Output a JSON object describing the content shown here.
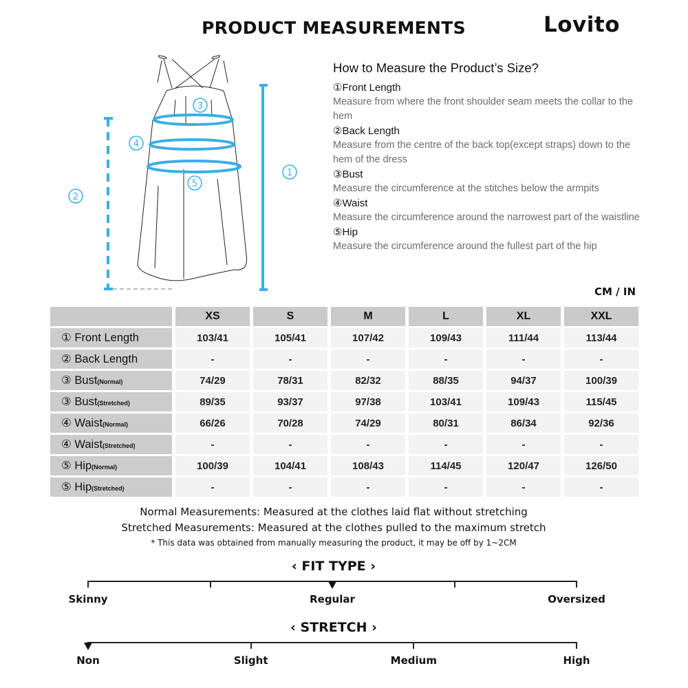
{
  "title": "PRODUCT MEASUREMENTS",
  "brand": "Lovito",
  "accent_color": "#3aaee6",
  "how_to": {
    "heading": "How to Measure the Product’s Size?",
    "items": [
      {
        "label": "①Front Length",
        "desc": "Measure from where the front shoulder seam meets the collar to the hem"
      },
      {
        "label": "②Back Length",
        "desc": "Measure from the centre of the back top(except straps) down to the hem of the dress"
      },
      {
        "label": "③Bust",
        "desc": "Measure the circumference at the stitches below the armpits"
      },
      {
        "label": "④Waist",
        "desc": "Measure the circumference around the narrowest part of the waistline"
      },
      {
        "label": "⑤Hip",
        "desc": "Measure the circumference around the fullest part of the hip"
      }
    ]
  },
  "diagram_labels": [
    "①",
    "②",
    "③",
    "④",
    "⑤"
  ],
  "unit": "CM / IN",
  "table": {
    "sizes": [
      "XS",
      "S",
      "M",
      "L",
      "XL",
      "XXL"
    ],
    "rows": [
      {
        "num": "①",
        "name": "Front Length",
        "sub": "",
        "values": [
          "103/41",
          "105/41",
          "107/42",
          "109/43",
          "111/44",
          "113/44"
        ]
      },
      {
        "num": "②",
        "name": "Back Length",
        "sub": "",
        "values": [
          "-",
          "-",
          "-",
          "-",
          "-",
          "-"
        ]
      },
      {
        "num": "③",
        "name": "Bust",
        "sub": "(Normal)",
        "values": [
          "74/29",
          "78/31",
          "82/32",
          "88/35",
          "94/37",
          "100/39"
        ]
      },
      {
        "num": "③",
        "name": "Bust",
        "sub": "(Stretched)",
        "values": [
          "89/35",
          "93/37",
          "97/38",
          "103/41",
          "109/43",
          "115/45"
        ]
      },
      {
        "num": "④",
        "name": "Waist",
        "sub": "(Normal)",
        "values": [
          "66/26",
          "70/28",
          "74/29",
          "80/31",
          "86/34",
          "92/36"
        ]
      },
      {
        "num": "④",
        "name": "Waist",
        "sub": "(Stretched)",
        "values": [
          "-",
          "-",
          "-",
          "-",
          "-",
          "-"
        ]
      },
      {
        "num": "⑤",
        "name": "Hip",
        "sub": "(Normal)",
        "values": [
          "100/39",
          "104/41",
          "108/43",
          "114/45",
          "120/47",
          "126/50"
        ]
      },
      {
        "num": "⑤",
        "name": "Hip",
        "sub": "(Stretched)",
        "values": [
          "-",
          "-",
          "-",
          "-",
          "-",
          "-"
        ]
      }
    ]
  },
  "notes": {
    "normal": "Normal Measurements: Measured at the clothes laid flat without stretching",
    "stretched": "Stretched  Measurements: Measured at the clothes pulled to the maximum stretch",
    "disclaimer": "* This data was obtained from manually measuring the product, it may be off by 1~2CM"
  },
  "fit_type": {
    "title": "‹ FIT TYPE ›",
    "labels": [
      "Skinny",
      "Regular",
      "Oversized"
    ],
    "value": 0.5,
    "value_label": "Regular"
  },
  "stretch": {
    "title": "‹ STRETCH ›",
    "labels": [
      "Non",
      "Slight",
      "Medium",
      "High"
    ],
    "value": 0,
    "value_label": "Non"
  }
}
